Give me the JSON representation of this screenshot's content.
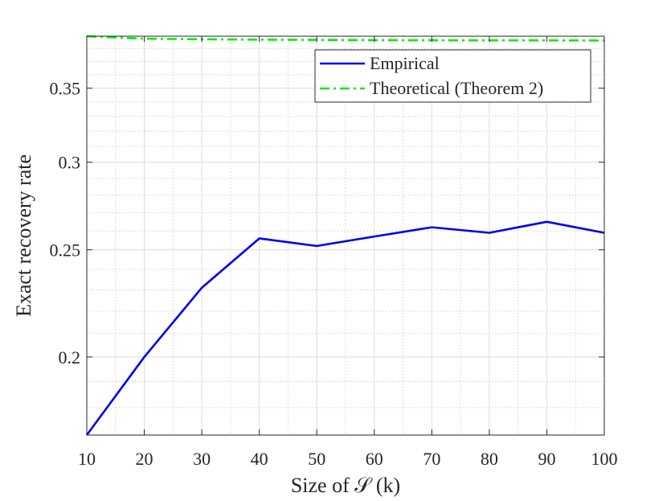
{
  "chart_data": {
    "type": "line",
    "title": "",
    "xlabel": "Size of 𝒮 (k)",
    "ylabel": "Exact recovery rate",
    "x": [
      10,
      20,
      30,
      40,
      50,
      60,
      70,
      80,
      90,
      100
    ],
    "xlim": [
      10,
      100
    ],
    "ylim": [
      0.17,
      0.39
    ],
    "yscale": "log",
    "x_ticks": [
      10,
      20,
      30,
      40,
      50,
      60,
      70,
      80,
      90,
      100
    ],
    "y_ticks": [
      0.2,
      0.25,
      0.3,
      0.35
    ],
    "y_tick_labels": [
      "0.2",
      "0.25",
      "0.3",
      "0.35"
    ],
    "grid": true,
    "minor_grid": true,
    "legend_position": "top-right",
    "series": [
      {
        "name": "Empirical",
        "color": "#0000ee",
        "style": "solid",
        "values": [
          0.17,
          0.2,
          0.231,
          0.256,
          0.252,
          0.257,
          0.262,
          0.259,
          0.265,
          0.259
        ]
      },
      {
        "name": "Theoretical (Theorem 2)",
        "color": "#00ee00",
        "style": "dashdot",
        "values": [
          0.39,
          0.388,
          0.3875,
          0.3872,
          0.387,
          0.3868,
          0.3867,
          0.3866,
          0.3866,
          0.3865
        ]
      }
    ]
  }
}
